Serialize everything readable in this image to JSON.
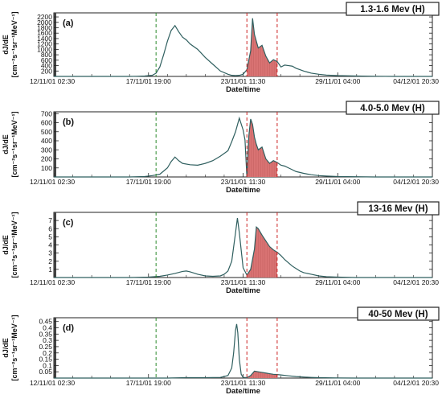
{
  "chart_data": [
    {
      "type": "area",
      "panel_label": "(a)",
      "title": "1.3-1.6 Mev (H)",
      "xlabel": "Date/time",
      "ylabel": [
        "dJ/dE",
        "[cm⁻²s⁻¹sr⁻¹MeV⁻¹]"
      ],
      "yticks": [
        "200",
        "400",
        "600",
        "800",
        "1000",
        "1200",
        "1400",
        "1600",
        "1800",
        "2000",
        "2200"
      ],
      "ylim": [
        0,
        2350
      ],
      "xticks": [
        "12/11/01 02:30",
        "17/11/01 19:00",
        "23/11/01 11:30",
        "29/11/01 04:00",
        "04/12/01 20:30"
      ],
      "series": [
        {
          "x": [
            0,
            5,
            10,
            15,
            18,
            20,
            22,
            24,
            26,
            27,
            28,
            29,
            30,
            31,
            32,
            33,
            34,
            35,
            36,
            38,
            40,
            42,
            44,
            46,
            47,
            48,
            49,
            50,
            51,
            52,
            52.5,
            53,
            53.5,
            54,
            55,
            56,
            57,
            58,
            59,
            60,
            61,
            62,
            63,
            64,
            65,
            66,
            67,
            68,
            70,
            72,
            75,
            80,
            85,
            90,
            100
          ],
          "y": [
            0,
            0,
            0,
            0,
            0,
            0,
            5,
            15,
            40,
            120,
            350,
            800,
            1300,
            1700,
            1880,
            1650,
            1450,
            1350,
            1200,
            1000,
            700,
            450,
            200,
            80,
            40,
            30,
            40,
            80,
            250,
            950,
            2150,
            1550,
            1300,
            1050,
            1150,
            750,
            500,
            620,
            550,
            350,
            420,
            400,
            380,
            300,
            250,
            200,
            160,
            120,
            80,
            50,
            30,
            15,
            5,
            0,
            0
          ]
        }
      ],
      "shaded_range": [
        51,
        59
      ],
      "vlines": [
        {
          "x": 27,
          "color": "green"
        },
        {
          "x": 51,
          "color": "red"
        },
        {
          "x": 59,
          "color": "red"
        }
      ]
    },
    {
      "type": "area",
      "panel_label": "(b)",
      "title": "4.0-5.0 Mev (H)",
      "xlabel": "Date/time",
      "ylabel": [
        "dJ/dE",
        "[cm⁻²s⁻¹sr⁻¹MeV⁻¹]"
      ],
      "yticks": [
        "100",
        "200",
        "300",
        "400",
        "500",
        "600",
        "700"
      ],
      "ylim": [
        0,
        720
      ],
      "xticks": [
        "12/11/01 02:30",
        "17/11/01 19:00",
        "23/11/01 11:30",
        "29/11/01 04:00",
        "04/12/01 20:30"
      ],
      "series": [
        {
          "x": [
            0,
            5,
            10,
            15,
            20,
            24,
            26,
            28,
            30,
            31,
            32,
            33,
            34,
            36,
            38,
            40,
            42,
            44,
            46,
            47,
            48,
            49,
            50,
            50.5,
            51,
            51.5,
            52,
            52.5,
            53,
            53.5,
            54,
            55,
            56,
            57,
            58,
            59,
            60,
            61,
            62,
            63,
            64,
            65,
            66,
            67,
            68,
            70,
            72,
            75,
            80,
            85,
            90,
            100
          ],
          "y": [
            0,
            0,
            0,
            0,
            0,
            5,
            15,
            30,
            100,
            170,
            220,
            180,
            150,
            135,
            130,
            150,
            180,
            230,
            290,
            390,
            500,
            650,
            520,
            410,
            0,
            450,
            640,
            580,
            440,
            360,
            300,
            330,
            200,
            150,
            180,
            160,
            130,
            120,
            100,
            80,
            60,
            50,
            40,
            32,
            25,
            15,
            10,
            5,
            2,
            0,
            0,
            0
          ]
        }
      ],
      "shaded_range": [
        51,
        59
      ],
      "vlines": [
        {
          "x": 27,
          "color": "green"
        },
        {
          "x": 51,
          "color": "red"
        },
        {
          "x": 59,
          "color": "red"
        }
      ]
    },
    {
      "type": "area",
      "panel_label": "(c)",
      "title": "13-16 Mev (H)",
      "xlabel": "Date/time",
      "ylabel": [
        "dJ/dE",
        "[cm⁻²s⁻¹sr⁻¹MeV⁻¹]"
      ],
      "yticks": [
        "1",
        "2",
        "3",
        "4",
        "5",
        "6",
        "7"
      ],
      "ylim": [
        0,
        8
      ],
      "xticks": [
        "12/11/01 02:30",
        "17/11/01 19:00",
        "23/11/01 11:30",
        "29/11/01 04:00",
        "04/12/01 20:30"
      ],
      "series": [
        {
          "x": [
            0,
            10,
            20,
            25,
            28,
            30,
            32,
            34,
            35,
            36,
            38,
            40,
            42,
            44,
            45,
            46,
            47,
            48,
            48.5,
            49,
            50,
            51,
            52,
            53,
            53.5,
            54,
            55,
            56,
            57,
            58,
            59,
            60,
            61,
            62,
            63,
            64,
            65,
            66,
            68,
            70,
            72,
            75,
            80,
            90,
            100
          ],
          "y": [
            0,
            0,
            0,
            0.05,
            0.15,
            0.3,
            0.5,
            0.75,
            0.8,
            0.7,
            0.4,
            0.2,
            0.15,
            0.2,
            0.4,
            0.8,
            2.0,
            5.5,
            7.3,
            5.5,
            1.2,
            0.3,
            1.0,
            3.5,
            6.2,
            6.0,
            5.2,
            4.5,
            3.8,
            3.4,
            3.1,
            2.7,
            2.2,
            1.8,
            1.4,
            1.1,
            0.8,
            0.6,
            0.4,
            0.2,
            0.1,
            0.05,
            0,
            0,
            0
          ]
        }
      ],
      "shaded_range": [
        51,
        59
      ],
      "vlines": [
        {
          "x": 27,
          "color": "green"
        },
        {
          "x": 51,
          "color": "red"
        },
        {
          "x": 59,
          "color": "red"
        }
      ]
    },
    {
      "type": "area",
      "panel_label": "(d)",
      "title": "40-50 Mev (H)",
      "xlabel": "Date/time",
      "ylabel": [
        "dJ/dE",
        "[cm⁻²s⁻¹sr⁻¹MeV⁻¹]"
      ],
      "yticks": [
        "0.05",
        "0.1",
        "0.15",
        "0.2",
        "0.25",
        "0.3",
        "0.35",
        "0.4",
        "0.45"
      ],
      "ylim": [
        0,
        0.48
      ],
      "xticks": [
        "12/11/01 02:30",
        "17/11/01 19:00",
        "23/11/01 11:30",
        "29/11/01 04:00",
        "04/12/01 20:30"
      ],
      "series": [
        {
          "x": [
            0,
            10,
            20,
            30,
            35,
            40,
            44,
            46,
            47,
            47.5,
            48,
            48.3,
            48.6,
            49,
            49.5,
            50,
            51,
            52,
            53,
            54,
            55,
            56,
            57,
            58,
            59,
            60,
            62,
            64,
            66,
            68,
            70,
            75,
            80,
            90,
            100
          ],
          "y": [
            0,
            0,
            0,
            0,
            0.003,
            0.003,
            0.005,
            0.02,
            0.08,
            0.2,
            0.38,
            0.43,
            0.36,
            0.15,
            0.03,
            0.005,
            0.003,
            0.02,
            0.055,
            0.05,
            0.045,
            0.04,
            0.035,
            0.03,
            0.028,
            0.025,
            0.018,
            0.012,
            0.008,
            0.005,
            0.003,
            0.001,
            0,
            0,
            0
          ]
        }
      ],
      "shaded_range": [
        51,
        59
      ],
      "vlines": [
        {
          "x": 27,
          "color": "green"
        },
        {
          "x": 51,
          "color": "red"
        },
        {
          "x": 59,
          "color": "red"
        }
      ]
    }
  ],
  "colors": {
    "line": "#2f5f5f",
    "fill": "#d97373",
    "green_marker": "#2a8a2a",
    "red_marker": "#cc2222"
  }
}
